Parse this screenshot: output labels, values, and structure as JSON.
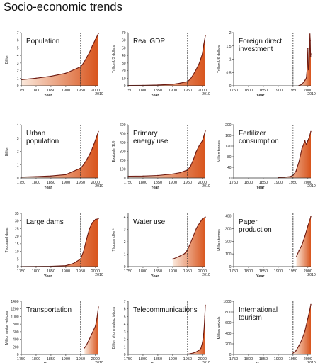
{
  "page": {
    "title": "Socio-economic trends"
  },
  "colors": {
    "line": "#6e1a10",
    "fill_light": "#fbe9dc",
    "fill_dark": "#d8541c",
    "axis": "#333333",
    "dashed": "#222222"
  },
  "chart_data": [
    {
      "type": "area",
      "title": [
        "Population"
      ],
      "ylabel": "Billion",
      "xlabel": "Year",
      "xticks": [
        "1750",
        "1800",
        "1850",
        "1900",
        "1950",
        "2000"
      ],
      "x_extra": "2010",
      "yticks": [
        0,
        1,
        2,
        3,
        4,
        5,
        6,
        7
      ],
      "ylim": [
        0,
        7
      ],
      "xlim": [
        1750,
        2010
      ],
      "divider_x": 1950,
      "x": [
        1750,
        1800,
        1850,
        1900,
        1950,
        1960,
        1970,
        1980,
        1990,
        2000,
        2010
      ],
      "y": [
        0.8,
        1.0,
        1.25,
        1.65,
        2.5,
        3.0,
        3.7,
        4.4,
        5.3,
        6.1,
        6.9
      ]
    },
    {
      "type": "area",
      "title": [
        "Real GDP"
      ],
      "ylabel": "Trillion US dollars",
      "xlabel": "Year",
      "xticks": [
        "1750",
        "1800",
        "1850",
        "1900",
        "1950",
        "2000"
      ],
      "x_extra": "2010",
      "yticks": [
        0,
        10,
        20,
        30,
        40,
        50,
        60,
        70
      ],
      "ylim": [
        0,
        70
      ],
      "xlim": [
        1750,
        2010
      ],
      "divider_x": 1950,
      "x": [
        1750,
        1800,
        1850,
        1900,
        1925,
        1950,
        1960,
        1970,
        1980,
        1990,
        2000,
        2005,
        2010
      ],
      "y": [
        0.4,
        0.6,
        1.0,
        2.0,
        3.5,
        5.5,
        9,
        15,
        22,
        30,
        42,
        55,
        66
      ]
    },
    {
      "type": "area",
      "title": [
        "Foreign direct",
        "investment"
      ],
      "ylabel": "Trillion US dollars",
      "xlabel": "Year",
      "xticks": [
        "1750",
        "1800",
        "1850",
        "1900",
        "1950",
        "2000"
      ],
      "x_extra": "2010",
      "yticks": [
        0,
        0.5,
        1.0,
        1.5,
        2.0
      ],
      "ylim": [
        0,
        2.0
      ],
      "xlim": [
        1750,
        2010
      ],
      "divider_x": 1950,
      "x": [
        1970,
        1980,
        1990,
        1995,
        1998,
        2000,
        2002,
        2004,
        2006,
        2007,
        2008,
        2009,
        2010
      ],
      "y": [
        0.01,
        0.05,
        0.2,
        0.3,
        0.7,
        1.4,
        0.6,
        0.7,
        1.4,
        1.95,
        1.7,
        1.1,
        1.2
      ]
    },
    {
      "type": "area",
      "title": [
        "Urban",
        "population"
      ],
      "ylabel": "Billion",
      "xlabel": "Year",
      "xticks": [
        "1750",
        "1800",
        "1850",
        "1900",
        "1950",
        "2000"
      ],
      "x_extra": "2010",
      "yticks": [
        0,
        1,
        2,
        3,
        4
      ],
      "ylim": [
        0,
        4
      ],
      "xlim": [
        1750,
        2010
      ],
      "divider_x": 1950,
      "x": [
        1750,
        1800,
        1850,
        1900,
        1950,
        1960,
        1970,
        1980,
        1990,
        2000,
        2010
      ],
      "y": [
        0.07,
        0.1,
        0.15,
        0.25,
        0.73,
        1.0,
        1.35,
        1.75,
        2.25,
        2.85,
        3.5
      ]
    },
    {
      "type": "area",
      "title": [
        "Primary",
        "energy use"
      ],
      "ylabel": "Exajoule (EJ)",
      "xlabel": "Year",
      "xticks": [
        "1750",
        "1800",
        "1850",
        "1900",
        "1950",
        "2000"
      ],
      "x_extra": "2010",
      "yticks": [
        0,
        100,
        200,
        300,
        400,
        500,
        600
      ],
      "ylim": [
        0,
        600
      ],
      "xlim": [
        1750,
        2010
      ],
      "divider_x": 1950,
      "x": [
        1750,
        1800,
        1850,
        1900,
        1925,
        1950,
        1960,
        1970,
        1980,
        1990,
        2000,
        2010
      ],
      "y": [
        20,
        22,
        28,
        45,
        60,
        90,
        130,
        210,
        300,
        370,
        420,
        530
      ]
    },
    {
      "type": "area",
      "title": [
        "Fertilizer",
        "consumption"
      ],
      "ylabel": "Million tonnes",
      "xlabel": "Year",
      "xticks": [
        "1750",
        "1800",
        "1850",
        "1900",
        "1950",
        "2000"
      ],
      "x_extra": "2010",
      "yticks": [
        0,
        40,
        80,
        120,
        160,
        200
      ],
      "ylim": [
        0,
        200
      ],
      "xlim": [
        1750,
        2010
      ],
      "divider_x": 1950,
      "x": [
        1900,
        1920,
        1940,
        1950,
        1960,
        1970,
        1980,
        1990,
        1995,
        2000,
        2005,
        2010
      ],
      "y": [
        1,
        3,
        5,
        10,
        25,
        60,
        110,
        140,
        125,
        140,
        155,
        175
      ]
    },
    {
      "type": "area",
      "title": [
        "Large dams"
      ],
      "ylabel": "Thousand dams",
      "xlabel": "Year",
      "xticks": [
        "1750",
        "1800",
        "1850",
        "1900",
        "1950",
        "2000"
      ],
      "x_extra": "2010",
      "yticks": [
        0,
        5,
        10,
        15,
        20,
        25,
        30,
        35
      ],
      "ylim": [
        0,
        35
      ],
      "xlim": [
        1750,
        2010
      ],
      "divider_x": 1950,
      "x": [
        1750,
        1800,
        1850,
        1900,
        1925,
        1950,
        1960,
        1970,
        1980,
        1990,
        2000,
        2010
      ],
      "y": [
        0.05,
        0.1,
        0.2,
        0.6,
        2,
        5,
        10,
        18,
        25,
        29,
        31,
        31.5
      ]
    },
    {
      "type": "area",
      "title": [
        "Water use"
      ],
      "ylabel": "Thousand km³",
      "xlabel": "Year",
      "xticks": [
        "1750",
        "1800",
        "1850",
        "1900",
        "1950",
        "2000"
      ],
      "x_extra": "2010",
      "yticks": [
        0,
        1,
        2,
        3,
        4
      ],
      "ylim": [
        0,
        4.3
      ],
      "xlim": [
        1750,
        2010
      ],
      "divider_x": 1950,
      "x": [
        1900,
        1920,
        1940,
        1950,
        1960,
        1970,
        1980,
        1990,
        2000,
        2010
      ],
      "y": [
        0.6,
        0.8,
        1.05,
        1.35,
        1.9,
        2.5,
        3.1,
        3.5,
        3.85,
        4.0
      ]
    },
    {
      "type": "area",
      "title": [
        "Paper",
        "production"
      ],
      "ylabel": "Million tonnes",
      "xlabel": "Year",
      "xticks": [
        "1750",
        "1800",
        "1850",
        "1900",
        "1950",
        "2000"
      ],
      "x_extra": "2010",
      "yticks": [
        0,
        100,
        200,
        300,
        400
      ],
      "ylim": [
        0,
        420
      ],
      "xlim": [
        1750,
        2010
      ],
      "divider_x": 1950,
      "x": [
        1961,
        1970,
        1980,
        1990,
        2000,
        2010
      ],
      "y": [
        77,
        125,
        170,
        240,
        320,
        395
      ]
    },
    {
      "type": "area",
      "title": [
        "Transportation"
      ],
      "ylabel": "Million motor vehicles",
      "xlabel": "Year",
      "xticks": [
        "1750",
        "1800",
        "1850",
        "1900",
        "1950",
        "2000"
      ],
      "x_extra": "2010",
      "yticks": [
        0,
        200,
        400,
        600,
        800,
        1000,
        1200,
        1400
      ],
      "ylim": [
        0,
        1400
      ],
      "xlim": [
        1750,
        2010
      ],
      "divider_x": 1950,
      "x": [
        1963,
        1970,
        1980,
        1990,
        2000,
        2005,
        2010
      ],
      "y": [
        170,
        250,
        410,
        580,
        750,
        950,
        1250
      ]
    },
    {
      "type": "area",
      "title": [
        "Telecommunications"
      ],
      "ylabel": "Billion phone subscriptions",
      "xlabel": "Year",
      "xticks": [
        "1750",
        "1800",
        "1850",
        "1900",
        "1950",
        "2000"
      ],
      "x_extra": "2010",
      "yticks": [
        0,
        1,
        2,
        3,
        4,
        5,
        6,
        7
      ],
      "ylim": [
        0,
        7
      ],
      "xlim": [
        1750,
        2010
      ],
      "divider_x": 1950,
      "x": [
        1950,
        1960,
        1970,
        1980,
        1990,
        1995,
        2000,
        2003,
        2006,
        2008,
        2010
      ],
      "y": [
        0.05,
        0.1,
        0.2,
        0.35,
        0.6,
        0.8,
        1.5,
        2.2,
        3.5,
        5.0,
        6.5
      ]
    },
    {
      "type": "area",
      "title": [
        "International",
        "tourism"
      ],
      "ylabel": "Million arrivals",
      "xlabel": "Year",
      "xticks": [
        "1750",
        "1800",
        "1850",
        "1900",
        "1950",
        "2000"
      ],
      "x_extra": "2010",
      "yticks": [
        0,
        200,
        400,
        600,
        800,
        1000
      ],
      "ylim": [
        0,
        1000
      ],
      "xlim": [
        1750,
        2010
      ],
      "divider_x": 1950,
      "x": [
        1950,
        1960,
        1970,
        1980,
        1990,
        2000,
        2005,
        2010
      ],
      "y": [
        25,
        70,
        165,
        280,
        440,
        680,
        800,
        940
      ]
    }
  ]
}
